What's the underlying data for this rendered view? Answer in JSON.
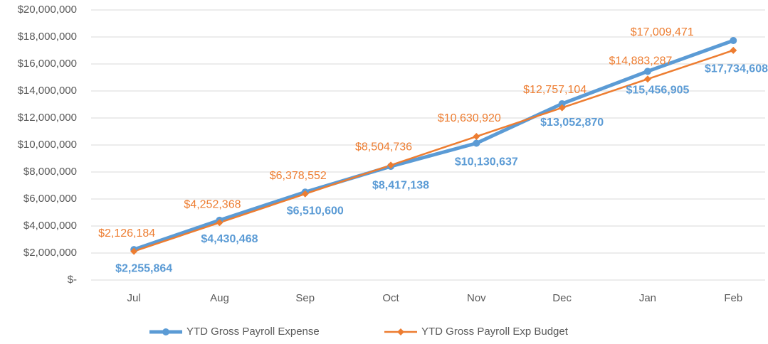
{
  "chart_data": {
    "type": "line",
    "categories": [
      "Jul",
      "Aug",
      "Sep",
      "Oct",
      "Nov",
      "Dec",
      "Jan",
      "Feb"
    ],
    "series": [
      {
        "name": "YTD Gross Payroll Expense",
        "color": "#5b9bd5",
        "values": [
          2255864,
          4430468,
          6510600,
          8417138,
          10130637,
          13052870,
          15456905,
          17734608
        ],
        "value_labels": [
          "$2,255,864",
          "$4,430,468",
          "$6,510,600",
          "$8,417,138",
          "$10,130,637",
          "$13,052,870",
          "$15,456,905",
          "$17,734,608"
        ]
      },
      {
        "name": "YTD Gross Payroll Exp Budget",
        "color": "#ed7d31",
        "values": [
          2126184,
          4252368,
          6378552,
          8504736,
          10630920,
          12757104,
          14883287,
          17009471
        ],
        "value_labels": [
          "$2,126,184",
          "$4,252,368",
          "$6,378,552",
          "$8,504,736",
          "$10,630,920",
          "$12,757,104",
          "$14,883,287",
          "$17,009,471"
        ]
      }
    ],
    "ylim": [
      0,
      20000000
    ],
    "yticks": [
      {
        "value": 0,
        "label": "$-"
      },
      {
        "value": 2000000,
        "label": "$2,000,000"
      },
      {
        "value": 4000000,
        "label": "$4,000,000"
      },
      {
        "value": 6000000,
        "label": "$6,000,000"
      },
      {
        "value": 8000000,
        "label": "$8,000,000"
      },
      {
        "value": 10000000,
        "label": "$10,000,000"
      },
      {
        "value": 12000000,
        "label": "$12,000,000"
      },
      {
        "value": 14000000,
        "label": "$14,000,000"
      },
      {
        "value": 16000000,
        "label": "$16,000,000"
      },
      {
        "value": 18000000,
        "label": "$18,000,000"
      },
      {
        "value": 20000000,
        "label": "$20,000,000"
      }
    ],
    "grid": true,
    "legend": "bottom"
  }
}
